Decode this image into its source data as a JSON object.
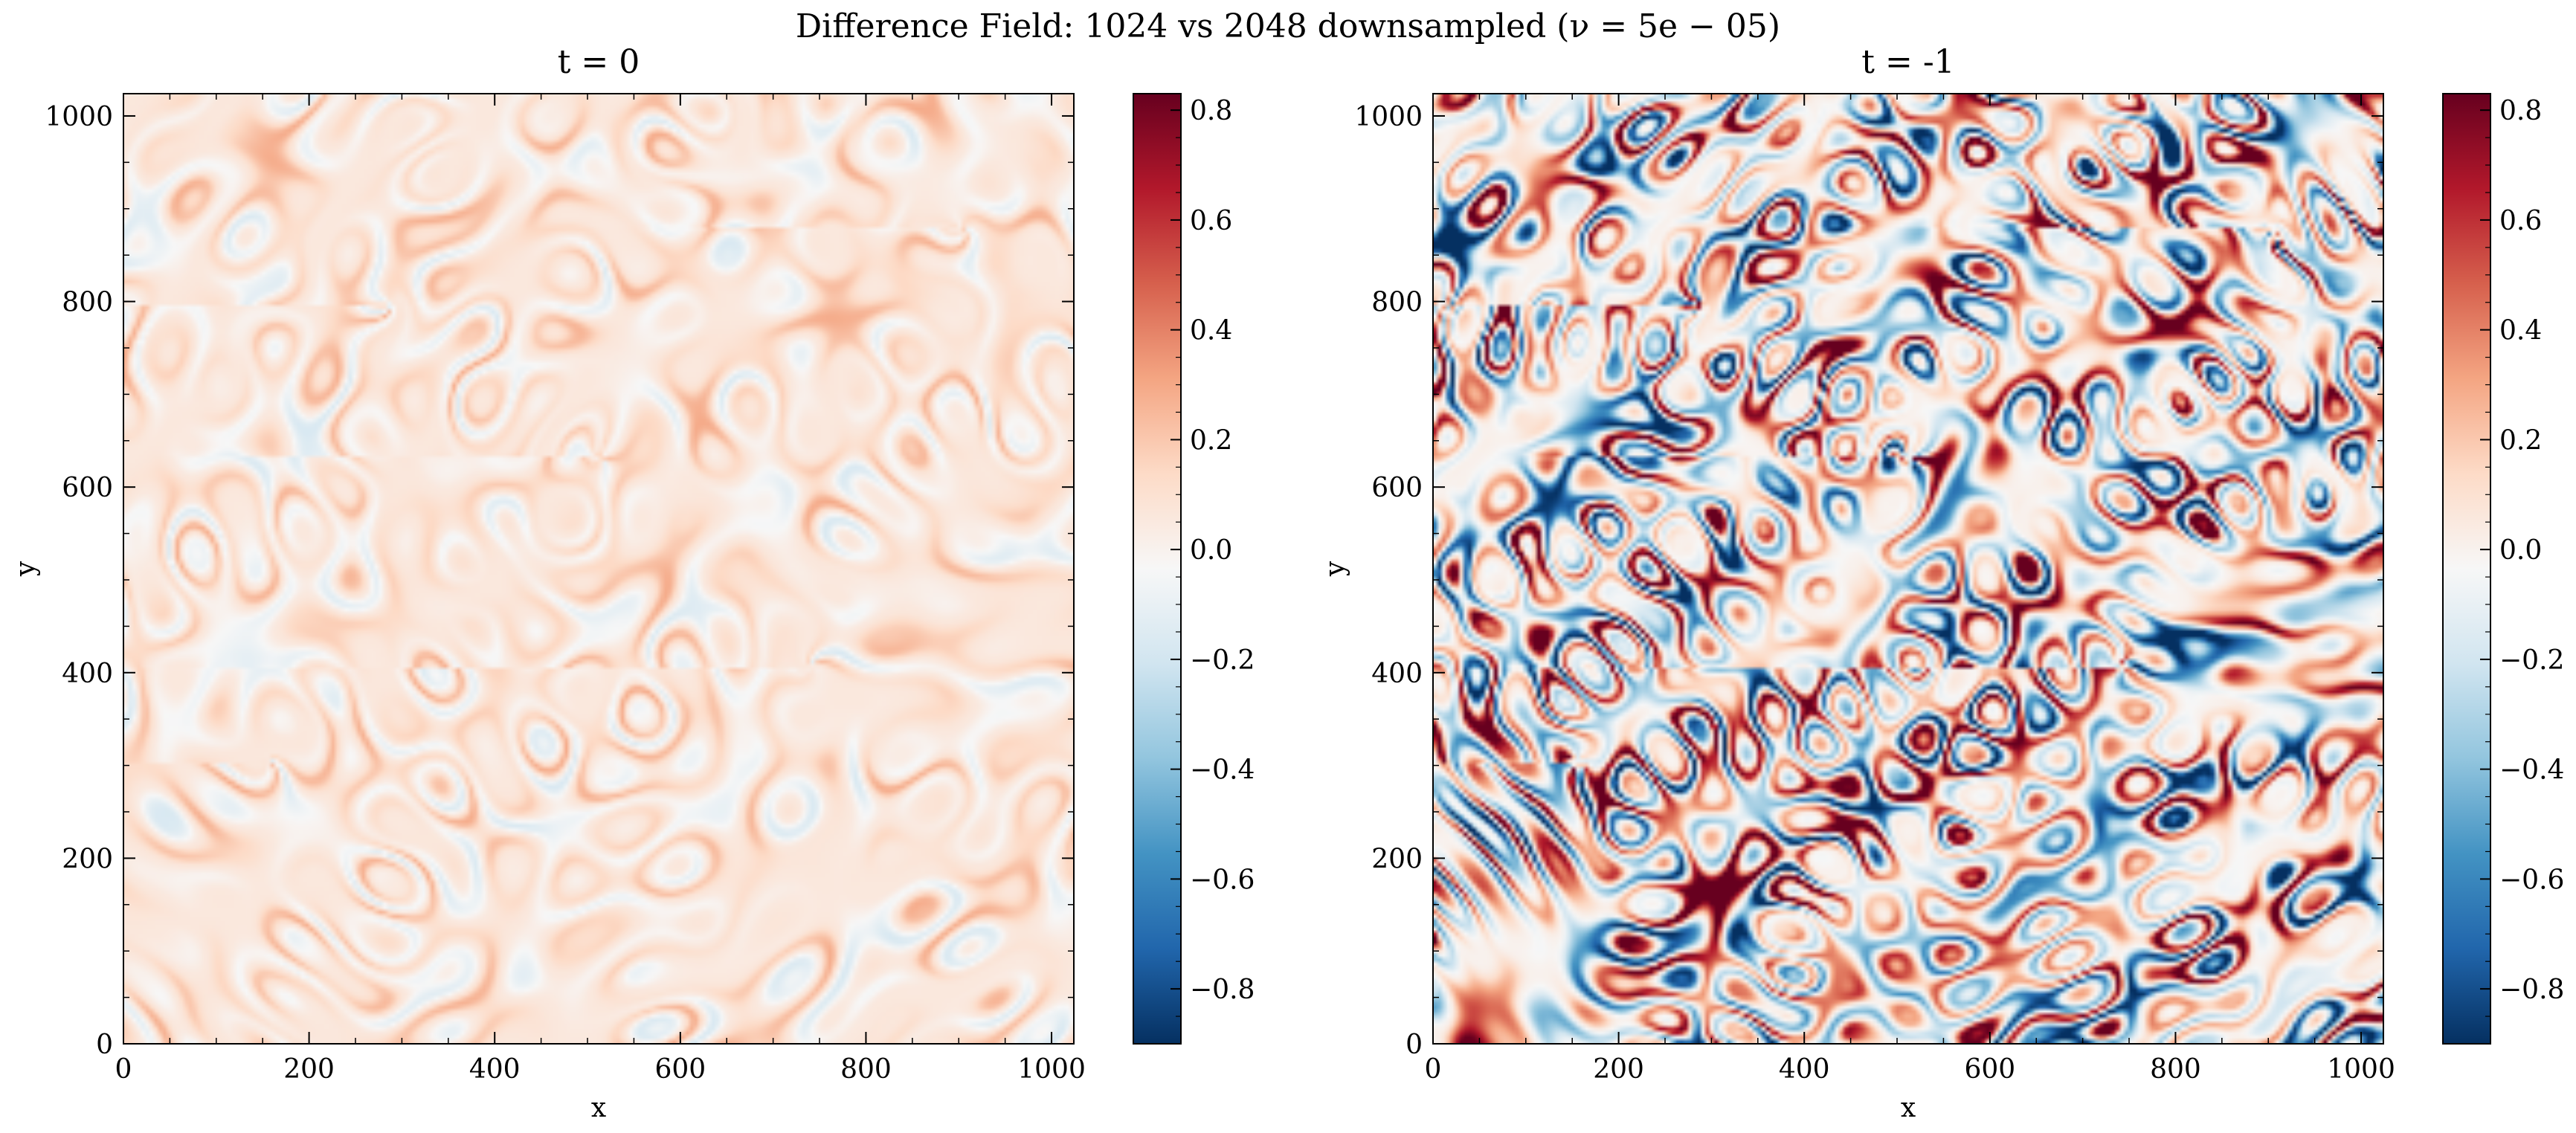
{
  "chart_data": {
    "title": "Difference Field: 1024 vs 2048 downsampled (ν = 5e − 05)",
    "type": "heatmap",
    "colormap": "RdBu_r",
    "colors": {
      "min": "#053061",
      "mid": "#f7f7f7",
      "max": "#67001f"
    },
    "panels": [
      {
        "title": "t = 0",
        "xlabel": "x",
        "ylabel": "y",
        "xlim": [
          0,
          1024
        ],
        "ylim": [
          0,
          1024
        ],
        "xticks": [
          0,
          200,
          400,
          600,
          800,
          1000
        ],
        "yticks": [
          0,
          200,
          400,
          600,
          800,
          1000
        ],
        "field_amplitude": 0.2,
        "colorbar": {
          "range": [
            -0.9,
            0.83
          ],
          "ticks": [
            -0.8,
            -0.6,
            -0.4,
            -0.2,
            0.0,
            0.2,
            0.4,
            0.6,
            0.8
          ],
          "tick_labels": [
            "−0.8",
            "−0.6",
            "−0.4",
            "−0.2",
            "0.0",
            "0.2",
            "0.4",
            "0.6",
            "0.8"
          ]
        }
      },
      {
        "title": "t = -1",
        "xlabel": "x",
        "ylabel": "y",
        "xlim": [
          0,
          1024
        ],
        "ylim": [
          0,
          1024
        ],
        "xticks": [
          0,
          200,
          400,
          600,
          800,
          1000
        ],
        "yticks": [
          0,
          200,
          400,
          600,
          800,
          1000
        ],
        "field_amplitude": 1.0,
        "colorbar": {
          "range": [
            -0.9,
            0.83
          ],
          "ticks": [
            -0.8,
            -0.6,
            -0.4,
            -0.2,
            0.0,
            0.2,
            0.4,
            0.6,
            0.8
          ],
          "tick_labels": [
            "−0.8",
            "−0.6",
            "−0.4",
            "−0.2",
            "0.0",
            "0.2",
            "0.4",
            "0.6",
            "0.8"
          ]
        }
      }
    ]
  }
}
